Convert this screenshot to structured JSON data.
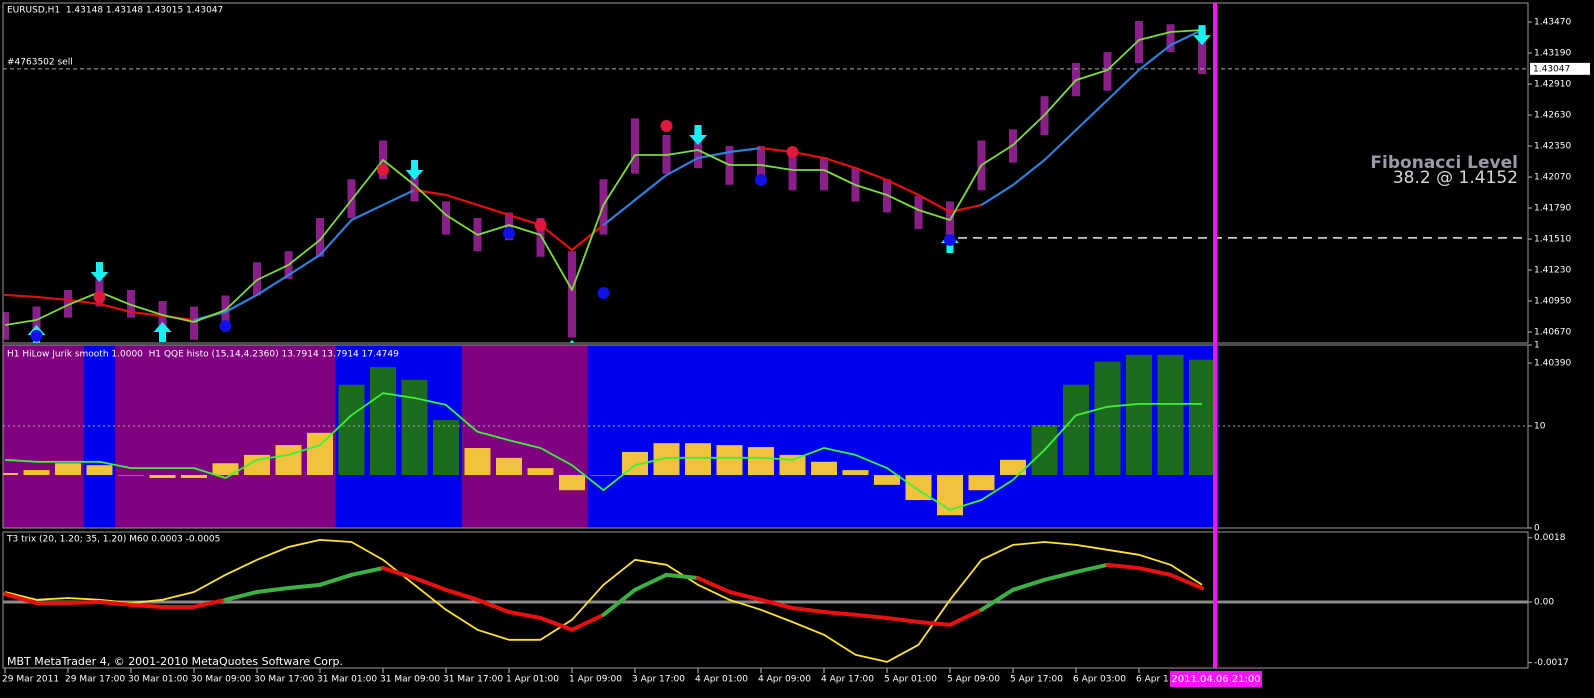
{
  "chart_data": [
    {
      "type": "line",
      "title": "EURUSD,H1  1.43148 1.43148 1.43015 1.43047",
      "categories": [
        "29 Mar 2011",
        null,
        "29 Mar 17:00",
        null,
        "30 Mar 01:00",
        null,
        "30 Mar 09:00",
        null,
        "30 Mar 17:00",
        null,
        "31 Mar 01:00",
        null,
        "31 Mar 09:00",
        null,
        "31 Mar 17:00",
        null,
        "1 Apr 01:00",
        null,
        "1 Apr 09:00",
        null,
        "3 Apr 17:00",
        null,
        "4 Apr 01:00",
        null,
        "4 Apr 09:00",
        null,
        "4 Apr 17:00",
        null,
        "5 Apr 01:00",
        null,
        "5 Apr 09:00",
        null,
        "5 Apr 17:00",
        null,
        "6 Apr 03:00",
        null,
        "6 Apr 1",
        null,
        null
      ],
      "ylim": [
        1.40571,
        1.43642
      ],
      "yticks": [
        {
          "value": 1.4347,
          "label": "1.43470"
        },
        {
          "value": 1.4319,
          "label": "1.43190"
        },
        {
          "value": 1.4291,
          "label": "1.42910"
        },
        {
          "value": 1.4263,
          "label": "1.42630"
        },
        {
          "value": 1.4235,
          "label": "1.42350"
        },
        {
          "value": 1.4207,
          "label": "1.42070"
        },
        {
          "value": 1.4179,
          "label": "1.41790"
        },
        {
          "value": 1.4151,
          "label": "1.41510"
        },
        {
          "value": 1.4123,
          "label": "1.41230"
        },
        {
          "value": 1.4095,
          "label": "1.40950"
        },
        {
          "value": 1.4067,
          "label": "1.40670"
        },
        {
          "value": 1.4039,
          "label": "1.40390"
        }
      ],
      "candles": {
        "color": "#8a1f8a",
        "high": [
          1.4085,
          1.409,
          1.4105,
          1.4115,
          1.4105,
          1.4095,
          1.409,
          1.41,
          1.413,
          1.414,
          1.417,
          1.4205,
          1.424,
          1.4215,
          1.4185,
          1.417,
          1.4175,
          1.417,
          1.414,
          1.4205,
          1.426,
          1.4245,
          1.425,
          1.4235,
          1.4235,
          1.423,
          1.4225,
          1.4215,
          1.4205,
          1.419,
          1.4185,
          1.424,
          1.425,
          1.428,
          1.431,
          1.432,
          1.4348,
          1.4345,
          1.4342
        ],
        "low": [
          1.406,
          1.4065,
          1.408,
          1.409,
          1.408,
          1.407,
          1.406,
          1.4075,
          1.41,
          1.4115,
          1.4135,
          1.417,
          1.4205,
          1.4185,
          1.4155,
          1.414,
          1.415,
          1.4135,
          1.4062,
          1.4155,
          1.421,
          1.421,
          1.4215,
          1.42,
          1.42,
          1.4195,
          1.4195,
          1.4185,
          1.4175,
          1.416,
          1.415,
          1.4195,
          1.422,
          1.4245,
          1.428,
          1.4285,
          1.431,
          1.432,
          1.43
        ]
      },
      "series": [
        {
          "segment_colors": [
            "#e01010",
            "#e01010",
            "#e01010",
            "#e01010",
            "#e01010",
            "#e01010",
            "#2e7fd8",
            "#2e7fd8",
            "#2e7fd8",
            "#2e7fd8",
            "#2e7fd8",
            "#2e7fd8",
            "#2e7fd8",
            "#e01010",
            "#e01010",
            "#e01010",
            "#e01010",
            "#e01010",
            "#e01010",
            "#2e7fd8",
            "#2e7fd8",
            "#2e7fd8",
            "#2e7fd8",
            "#2e7fd8",
            "#e01010",
            "#e01010",
            "#e01010",
            "#e01010",
            "#e01010",
            "#e01010",
            "#e01010",
            "#2e7fd8",
            "#2e7fd8",
            "#2e7fd8",
            "#2e7fd8",
            "#2e7fd8",
            "#2e7fd8",
            "#2e7fd8",
            "#e01010"
          ],
          "values": [
            1.41005,
            1.40987,
            1.4096,
            1.40924,
            1.40851,
            1.40815,
            1.40779,
            1.40851,
            1.41005,
            1.41185,
            1.41366,
            1.41682,
            1.41818,
            1.41953,
            1.41908,
            1.41818,
            1.41727,
            1.41637,
            1.41411,
            1.41637,
            1.41863,
            1.42088,
            1.42242,
            1.42296,
            1.42332,
            1.42296,
            1.42242,
            1.42152,
            1.42043,
            1.41908,
            1.41754,
            1.41818,
            1.41998,
            1.42224,
            1.42495,
            1.42766,
            1.43037,
            1.43262,
            1.43398
          ]
        },
        {
          "color": "#7ddc3a",
          "values": [
            1.40734,
            1.40779,
            1.40915,
            1.41032,
            1.40915,
            1.40824,
            1.40761,
            1.40869,
            1.4114,
            1.41276,
            1.41502,
            1.41863,
            1.42224,
            1.41998,
            1.41727,
            1.41547,
            1.41637,
            1.41547,
            1.4105,
            1.41818,
            1.42269,
            1.42269,
            1.42314,
            1.42179,
            1.42179,
            1.42134,
            1.42134,
            1.41998,
            1.41908,
            1.41772,
            1.41682,
            1.42179,
            1.42359,
            1.4263,
            1.42946,
            1.43037,
            1.43308,
            1.4338,
            1.43398
          ]
        }
      ],
      "signals": [
        {
          "marker": "arrow-up",
          "color": "#19f0f0",
          "values": [
            null,
            1.40734,
            null,
            null,
            null,
            1.40761,
            null,
            null,
            null,
            null,
            null,
            null,
            null,
            null,
            null,
            null,
            null,
            null,
            1.40599,
            null,
            null,
            null,
            null,
            null,
            null,
            null,
            null,
            null,
            null,
            null,
            1.41565,
            null,
            null,
            null,
            null,
            null,
            null,
            null,
            null
          ]
        },
        {
          "marker": "arrow-down",
          "color": "#19f0f0",
          "values": [
            null,
            null,
            null,
            1.41122,
            null,
            null,
            null,
            null,
            null,
            null,
            null,
            null,
            null,
            1.42043,
            null,
            null,
            null,
            null,
            null,
            null,
            null,
            null,
            1.42359,
            null,
            null,
            null,
            null,
            null,
            null,
            null,
            null,
            null,
            null,
            null,
            null,
            null,
            null,
            null,
            1.43262
          ]
        },
        {
          "marker": "dot",
          "color": "#e0193c",
          "values": [
            null,
            null,
            null,
            1.40987,
            null,
            null,
            null,
            null,
            null,
            null,
            null,
            null,
            1.42134,
            null,
            null,
            null,
            null,
            1.41637,
            null,
            null,
            null,
            1.42531,
            null,
            null,
            null,
            1.42296,
            null,
            null,
            null,
            null,
            null,
            null,
            null,
            null,
            null,
            null,
            null,
            null,
            null
          ]
        },
        {
          "marker": "dot",
          "color": "#1010e8",
          "values": [
            null,
            1.40635,
            null,
            null,
            null,
            null,
            null,
            1.40725,
            null,
            null,
            null,
            null,
            null,
            null,
            null,
            null,
            1.41565,
            null,
            null,
            1.41023,
            null,
            null,
            null,
            null,
            1.42043,
            null,
            null,
            null,
            null,
            null,
            1.41502,
            null,
            null,
            null,
            null,
            null,
            null,
            null,
            null
          ]
        }
      ],
      "order_line": {
        "label": "#4763502 sell",
        "value": 1.43047
      },
      "fib": {
        "title": "Fibonacci Level",
        "text": "38.2 @ 1.4152",
        "value": 1.4152
      },
      "cursor_label": "2011.04.06 21:00"
    },
    {
      "type": "bar",
      "title": "H1 HiLow Jurik smooth 1.0000  H1 QQE histo (15,14,4.2360) 13.7914 13.7914 17.4749",
      "ylim": [
        0,
        1
      ],
      "yticks": [
        0,
        1
      ],
      "y2lim": [
        -10.8,
        26.5
      ],
      "y2ticks": [
        10
      ],
      "states": {
        "colors": [
          "#800080",
          "#0000f0"
        ],
        "values": [
          0,
          0,
          0,
          1,
          0,
          0,
          0,
          0,
          0,
          0,
          0,
          1,
          1,
          1,
          1,
          0,
          0,
          0,
          0,
          1,
          1,
          1,
          1,
          1,
          1,
          1,
          1,
          1,
          1,
          1,
          1,
          1,
          1,
          1,
          1,
          1,
          1,
          1,
          1
        ]
      },
      "histogram": {
        "axis": "y2",
        "color_above": "#1d6b1d",
        "color_below": "#f2c23c",
        "values": [
          0.4,
          1.0,
          2.4,
          2.0,
          0,
          -0.6,
          -0.6,
          2.4,
          4.1,
          6.1,
          8.6,
          18.4,
          22.0,
          19.4,
          11.2,
          5.5,
          3.5,
          1.4,
          -3.1,
          0,
          4.7,
          6.5,
          6.5,
          6.1,
          5.7,
          4.1,
          2.7,
          1.0,
          -2.0,
          -5.1,
          -8.2,
          -3.1,
          3.1,
          10.2,
          18.4,
          23.1,
          24.5,
          24.5,
          23.5
        ]
      },
      "series": [
        {
          "color": "#3cf03c",
          "axis": "y2",
          "values": [
            3.1,
            2.7,
            2.7,
            2.7,
            1.4,
            1.4,
            1.4,
            -0.6,
            3.1,
            4.1,
            6.1,
            12.2,
            16.7,
            15.7,
            14.3,
            8.8,
            7.1,
            5.5,
            2.0,
            -3.1,
            2.0,
            3.5,
            3.5,
            3.5,
            3.5,
            3.1,
            5.5,
            4.1,
            1.4,
            -3.1,
            -7.1,
            -5.1,
            -1.0,
            5.1,
            12.2,
            13.9,
            14.5,
            14.5,
            14.5
          ]
        }
      ]
    },
    {
      "type": "line",
      "title": "T3 trix (20, 1.20; 35, 1.20) M60 0.0003 -0.0005",
      "ylim": [
        -0.00185,
        0.00196
      ],
      "yticks": [
        0.0018,
        {
          "value": 0,
          "label": "0.00"
        },
        -0.0017
      ],
      "zero_line_color": "#8c8c8c",
      "series": [
        {
          "color": "#ffe135",
          "values": [
            0.00028,
            6e-05,
            0.00011,
            6e-05,
            -3e-05,
            6e-05,
            0.00028,
            0.00076,
            0.00118,
            0.00154,
            0.00174,
            0.00168,
            0.00118,
            0.00048,
            -0.00022,
            -0.00078,
            -0.00106,
            -0.00106,
            -0.0005,
            0.00048,
            0.00118,
            0.00104,
            0.00048,
            6e-05,
            -0.00022,
            -0.00056,
            -0.00092,
            -0.00148,
            -0.00168,
            -0.0012,
            6e-05,
            0.00118,
            0.0016,
            0.00168,
            0.0016,
            0.00146,
            0.00132,
            0.00104,
            0.00048
          ]
        },
        {
          "segment_colors": [
            "#e81010",
            "#e81010",
            "#e81010",
            "#e81010",
            "#e81010",
            "#e81010",
            "#e81010",
            "#3cb043",
            "#3cb043",
            "#3cb043",
            "#3cb043",
            "#3cb043",
            "#e81010",
            "#e81010",
            "#e81010",
            "#e81010",
            "#e81010",
            "#e81010",
            "#e81010",
            "#3cb043",
            "#3cb043",
            "#3cb043",
            "#e81010",
            "#e81010",
            "#e81010",
            "#e81010",
            "#e81010",
            "#e81010",
            "#e81010",
            "#e81010",
            "#e81010",
            "#3cb043",
            "#3cb043",
            "#3cb043",
            "#3cb043",
            "#e81010",
            "#e81010",
            "#e81010",
            "#e81010"
          ],
          "values": [
            0.00022,
            -3e-05,
            -3e-05,
            0,
            -8e-05,
            -0.00014,
            -0.00014,
            6e-05,
            0.00028,
            0.00039,
            0.00048,
            0.00076,
            0.00095,
            0.00067,
            0.00034,
            6e-05,
            -0.00028,
            -0.00045,
            -0.00078,
            -0.00036,
            0.00034,
            0.00076,
            0.00067,
            0.00028,
            6e-05,
            -0.00017,
            -0.00028,
            -0.00036,
            -0.00045,
            -0.00056,
            -0.00064,
            -0.00022,
            0.00034,
            0.00062,
            0.00084,
            0.00104,
            0.00095,
            0.00076,
            0.00039
          ]
        }
      ],
      "footer": "MBT MetaTrader 4, © 2001-2010 MetaQuotes Software Corp."
    }
  ]
}
